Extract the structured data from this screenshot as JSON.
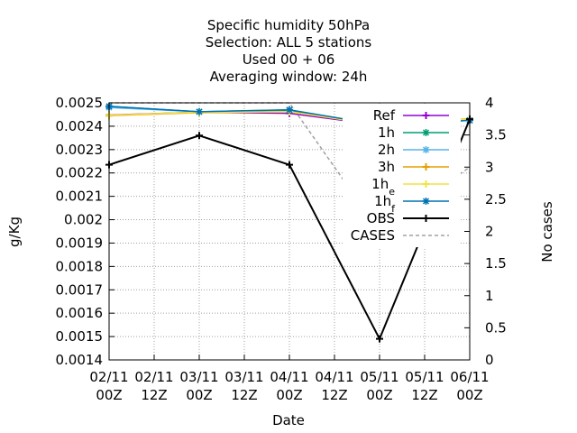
{
  "chart_data": {
    "type": "line",
    "title_lines": [
      "Specific humidity 50hPa",
      "Selection: ALL       5 stations",
      "Used  00 + 06",
      "Averaging window: 24h"
    ],
    "xlabel": "Date",
    "ylabel": "g/Kg",
    "y2label": "No cases",
    "x_ticks": [
      [
        "02/11",
        "00Z"
      ],
      [
        "02/11",
        "12Z"
      ],
      [
        "03/11",
        "00Z"
      ],
      [
        "03/11",
        "12Z"
      ],
      [
        "04/11",
        "00Z"
      ],
      [
        "04/11",
        "12Z"
      ],
      [
        "05/11",
        "00Z"
      ],
      [
        "05/11",
        "12Z"
      ],
      [
        "06/11",
        "00Z"
      ]
    ],
    "y_ticks": [
      "0.0014",
      "0.0015",
      "0.0016",
      "0.0017",
      "0.0018",
      "0.0019",
      "0.002",
      "0.0021",
      "0.0022",
      "0.0023",
      "0.0024",
      "0.0025"
    ],
    "y2_ticks": [
      "0",
      "0.5",
      "1",
      "1.5",
      "2",
      "2.5",
      "3",
      "3.5",
      "4"
    ],
    "ylim": [
      0.0014,
      0.0025
    ],
    "y2lim": [
      0,
      4
    ],
    "grid": true,
    "legend_position": "top-right",
    "x_index": [
      0,
      2,
      4,
      6,
      8
    ],
    "series": [
      {
        "name": "Ref",
        "legend": [
          [
            "Ref",
            ""
          ]
        ],
        "color": "#9400d3",
        "marker": "plus",
        "dash": "",
        "axis": "y1",
        "values": [
          0.002448,
          0.00246,
          0.002455,
          0.002405,
          0.002428
        ]
      },
      {
        "name": "1h",
        "legend": [
          [
            "1h",
            ""
          ]
        ],
        "color": "#009e73",
        "marker": "star",
        "dash": "",
        "axis": "y1",
        "values": [
          0.002485,
          0.002462,
          0.002468,
          0.002405,
          0.002425
        ]
      },
      {
        "name": "2h",
        "legend": [
          [
            "2h",
            ""
          ]
        ],
        "color": "#56b4e9",
        "marker": "star",
        "dash": "",
        "axis": "y1",
        "values": [
          0.00248,
          0.002462,
          0.00247,
          0.002405,
          0.002425
        ]
      },
      {
        "name": "3h",
        "legend": [
          [
            "3h",
            ""
          ]
        ],
        "color": "#e69f00",
        "marker": "plus",
        "dash": "",
        "axis": "y1",
        "values": [
          0.002445,
          0.002458,
          0.002462,
          0.002405,
          0.002432
        ]
      },
      {
        "name": "1he",
        "legend": [
          [
            "1h",
            ""
          ],
          [
            "e",
            "sub"
          ]
        ],
        "color": "#f0e442",
        "marker": "plus",
        "dash": "",
        "axis": "y1",
        "values": [
          0.002447,
          0.00246,
          0.002462,
          0.002405,
          0.00243
        ]
      },
      {
        "name": "1hf",
        "legend": [
          [
            "1h",
            ""
          ],
          [
            "f",
            "sub"
          ]
        ],
        "color": "#0072b2",
        "marker": "star",
        "dash": "",
        "axis": "y1",
        "values": [
          0.002485,
          0.002462,
          0.00247,
          0.002405,
          0.002425
        ]
      },
      {
        "name": "OBS",
        "legend": [
          [
            "OBS",
            ""
          ]
        ],
        "color": "#000000",
        "marker": "plus",
        "dash": "",
        "axis": "y1",
        "width": 2,
        "values": [
          0.002235,
          0.00236,
          0.002235,
          0.00149,
          0.00243
        ]
      },
      {
        "name": "CASES",
        "legend": [
          [
            "CASES",
            ""
          ]
        ],
        "color": "#a0a0a0",
        "marker": "",
        "dash": "4,3",
        "axis": "y2",
        "values": [
          4,
          4,
          4,
          2,
          3
        ]
      }
    ]
  }
}
